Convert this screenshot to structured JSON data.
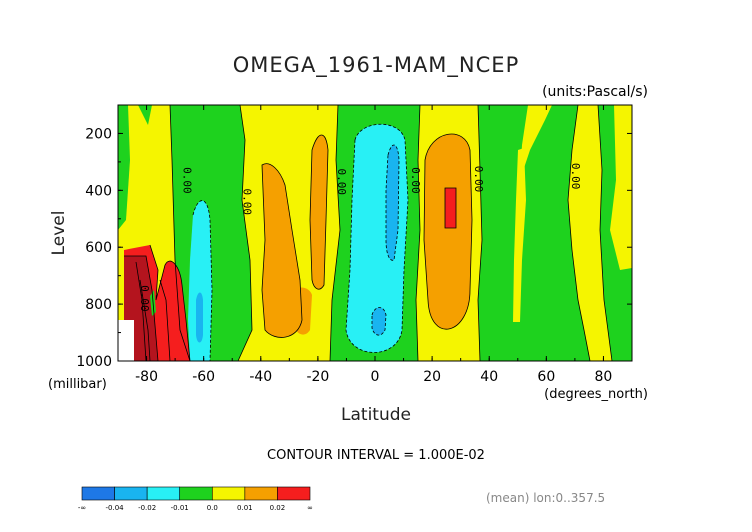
{
  "chart_data": {
    "type": "heatmap",
    "title": "OMEGA_1961-MAM_NCEP",
    "units_label": "(units:Pascal/s)",
    "xlabel": "Latitude",
    "ylabel": "Level",
    "x_unit_label": "(degrees_north)",
    "y_unit_label": "(millibar)",
    "xlim": [
      -90,
      90
    ],
    "ylim": [
      1000,
      100
    ],
    "x_ticks": [
      -80,
      -60,
      -40,
      -20,
      0,
      20,
      40,
      60,
      80
    ],
    "x_tick_labels": [
      "-80",
      "-60",
      "-40",
      "-20",
      "0",
      "20",
      "40",
      "60",
      "80"
    ],
    "y_ticks": [
      200,
      400,
      600,
      800,
      1000
    ],
    "y_tick_labels": [
      "200",
      "400",
      "600",
      "800",
      "1000"
    ],
    "contour_interval_text": "CONTOUR INTERVAL = 1.000E-02",
    "footer_note": "(mean) lon:0..357.5",
    "contour_labels": [
      {
        "text": "0.00",
        "lat": -67,
        "level": 365
      },
      {
        "text": "0.00",
        "lat": -46,
        "level": 440
      },
      {
        "text": "0.00",
        "lat": -13,
        "level": 370
      },
      {
        "text": "0.00",
        "lat": 13,
        "level": 365
      },
      {
        "text": "0.00",
        "lat": 35,
        "level": 360
      },
      {
        "text": "0.00",
        "lat": 69,
        "level": 350
      },
      {
        "text": "0.00",
        "lat": -82,
        "level": 780
      }
    ],
    "levels": [
      -0.04,
      -0.02,
      -0.01,
      0.0,
      0.01,
      0.02
    ],
    "colorbar": {
      "colors": [
        "#1e78e6",
        "#19b4f0",
        "#28f0f5",
        "#1ed21e",
        "#f5f500",
        "#f5a000",
        "#f51e1e"
      ],
      "tick_labels": [
        "-∞",
        "-0.04",
        "-0.02",
        "-0.01",
        "0.0",
        "0.01",
        "0.02",
        "∞"
      ]
    },
    "regions": [
      {
        "name": "upper-bg",
        "color": "#f5f500"
      },
      {
        "name": "green-band-sh",
        "color": "#1ed21e"
      },
      {
        "name": "cyan-band-sh",
        "color": "#28f0f5"
      },
      {
        "name": "blue-core-sh",
        "color": "#19b4f0"
      },
      {
        "name": "orange-sh",
        "color": "#f5a000"
      },
      {
        "name": "green-band-eq",
        "color": "#1ed21e"
      },
      {
        "name": "cyan-eq",
        "color": "#28f0f5"
      },
      {
        "name": "blue-eq-upper",
        "color": "#19b4f0"
      },
      {
        "name": "blue-eq-lower",
        "color": "#19b4f0"
      },
      {
        "name": "orange-nh",
        "color": "#f5a000"
      },
      {
        "name": "red-nh",
        "color": "#f51e1e"
      },
      {
        "name": "green-nh",
        "color": "#1ed21e"
      },
      {
        "name": "green-nh2",
        "color": "#1ed21e"
      },
      {
        "name": "red-antarctic",
        "color": "#f51e1e"
      },
      {
        "name": "dark-red-antarctic",
        "color": "#b4141e"
      },
      {
        "name": "missing",
        "color": "#ffffff"
      }
    ]
  }
}
